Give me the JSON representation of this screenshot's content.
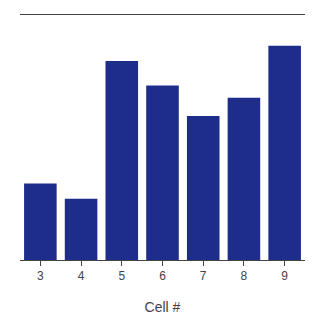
{
  "chart_data": {
    "type": "bar",
    "xlabel": "Cell #",
    "categories": [
      "3",
      "4",
      "5",
      "6",
      "7",
      "8",
      "9"
    ],
    "values": [
      1.44,
      1.435,
      1.48,
      1.472,
      1.462,
      1.468,
      1.485
    ],
    "color": "#1F2D8A",
    "ylim": [
      1.415,
      1.495
    ],
    "grid": false,
    "tick_labels": "x"
  }
}
